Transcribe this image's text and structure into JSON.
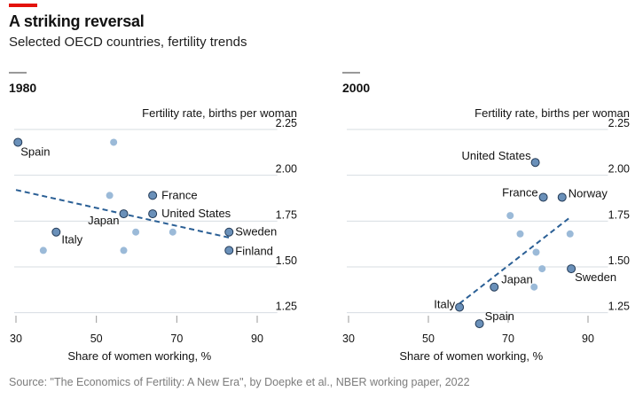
{
  "header": {
    "title": "A striking reversal",
    "subtitle": "Selected OECD countries, fertility trends",
    "accent_color": "#e3120b"
  },
  "source": "Source: \"The Economics of Fertility: A New Era\", by Doepke et al., NBER working paper, 2022",
  "chart_data": [
    {
      "type": "scatter",
      "title": "1980",
      "xlabel": "Share of women working, %",
      "ylabel": "Fertility rate, births per woman",
      "xlim": [
        30,
        95
      ],
      "ylim": [
        1.2,
        2.25
      ],
      "x_ticks": [
        30,
        50,
        70,
        90
      ],
      "x_tick_labels": [
        "30",
        "50",
        "70",
        "90"
      ],
      "y_ticks": [
        1.25,
        1.5,
        1.75,
        2.0,
        2.25
      ],
      "y_tick_labels": [
        "1.25",
        "1.50",
        "1.75",
        "2.00",
        "2.25"
      ],
      "grid": true,
      "points": [
        {
          "x": 30.5,
          "y": 2.18,
          "label": "Spain",
          "highlight": true
        },
        {
          "x": 54.3,
          "y": 2.18,
          "label": "",
          "highlight": false
        },
        {
          "x": 53.3,
          "y": 1.89,
          "label": "",
          "highlight": false
        },
        {
          "x": 64.0,
          "y": 1.89,
          "label": "France",
          "highlight": true
        },
        {
          "x": 56.8,
          "y": 1.79,
          "label": "Japan",
          "highlight": true
        },
        {
          "x": 64.0,
          "y": 1.79,
          "label": "United States",
          "highlight": true
        },
        {
          "x": 59.8,
          "y": 1.69,
          "label": "",
          "highlight": false
        },
        {
          "x": 69.0,
          "y": 1.69,
          "label": "",
          "highlight": false
        },
        {
          "x": 40.0,
          "y": 1.69,
          "label": "Italy",
          "highlight": true
        },
        {
          "x": 83.0,
          "y": 1.69,
          "label": "Sweden",
          "highlight": true
        },
        {
          "x": 36.8,
          "y": 1.59,
          "label": "",
          "highlight": false
        },
        {
          "x": 56.8,
          "y": 1.59,
          "label": "",
          "highlight": false
        },
        {
          "x": 83.0,
          "y": 1.59,
          "label": "Finland",
          "highlight": true
        }
      ],
      "trend_line": {
        "x": [
          30,
          83
        ],
        "y": [
          1.92,
          1.66
        ],
        "style": "dashed"
      }
    },
    {
      "type": "scatter",
      "title": "2000",
      "xlabel": "Share of women working, %",
      "ylabel": "Fertility rate, births per woman",
      "xlim": [
        30,
        95
      ],
      "ylim": [
        1.2,
        2.25
      ],
      "x_ticks": [
        30,
        50,
        70,
        90
      ],
      "x_tick_labels": [
        "30",
        "50",
        "70",
        "90"
      ],
      "y_ticks": [
        1.25,
        1.5,
        1.75,
        2.0,
        2.25
      ],
      "y_tick_labels": [
        "1.25",
        "1.50",
        "1.75",
        "2.00",
        "2.25"
      ],
      "grid": true,
      "points": [
        {
          "x": 76.8,
          "y": 2.07,
          "label": "United States",
          "highlight": true
        },
        {
          "x": 78.8,
          "y": 1.88,
          "label": "France",
          "highlight": true
        },
        {
          "x": 83.5,
          "y": 1.88,
          "label": "Norway",
          "highlight": true
        },
        {
          "x": 70.5,
          "y": 1.78,
          "label": "",
          "highlight": false
        },
        {
          "x": 73.0,
          "y": 1.68,
          "label": "",
          "highlight": false
        },
        {
          "x": 85.5,
          "y": 1.68,
          "label": "",
          "highlight": false
        },
        {
          "x": 77.0,
          "y": 1.58,
          "label": "",
          "highlight": false
        },
        {
          "x": 78.5,
          "y": 1.49,
          "label": "",
          "highlight": false
        },
        {
          "x": 85.8,
          "y": 1.49,
          "label": "Sweden",
          "highlight": true
        },
        {
          "x": 76.5,
          "y": 1.39,
          "label": "",
          "highlight": false
        },
        {
          "x": 66.5,
          "y": 1.39,
          "label": "Japan",
          "highlight": true
        },
        {
          "x": 57.8,
          "y": 1.28,
          "label": "Italy",
          "highlight": true
        },
        {
          "x": 62.8,
          "y": 1.19,
          "label": "Spain",
          "highlight": true
        }
      ],
      "trend_line": {
        "x": [
          57.8,
          85.5
        ],
        "y": [
          1.3,
          1.77
        ],
        "style": "dashed"
      }
    }
  ]
}
